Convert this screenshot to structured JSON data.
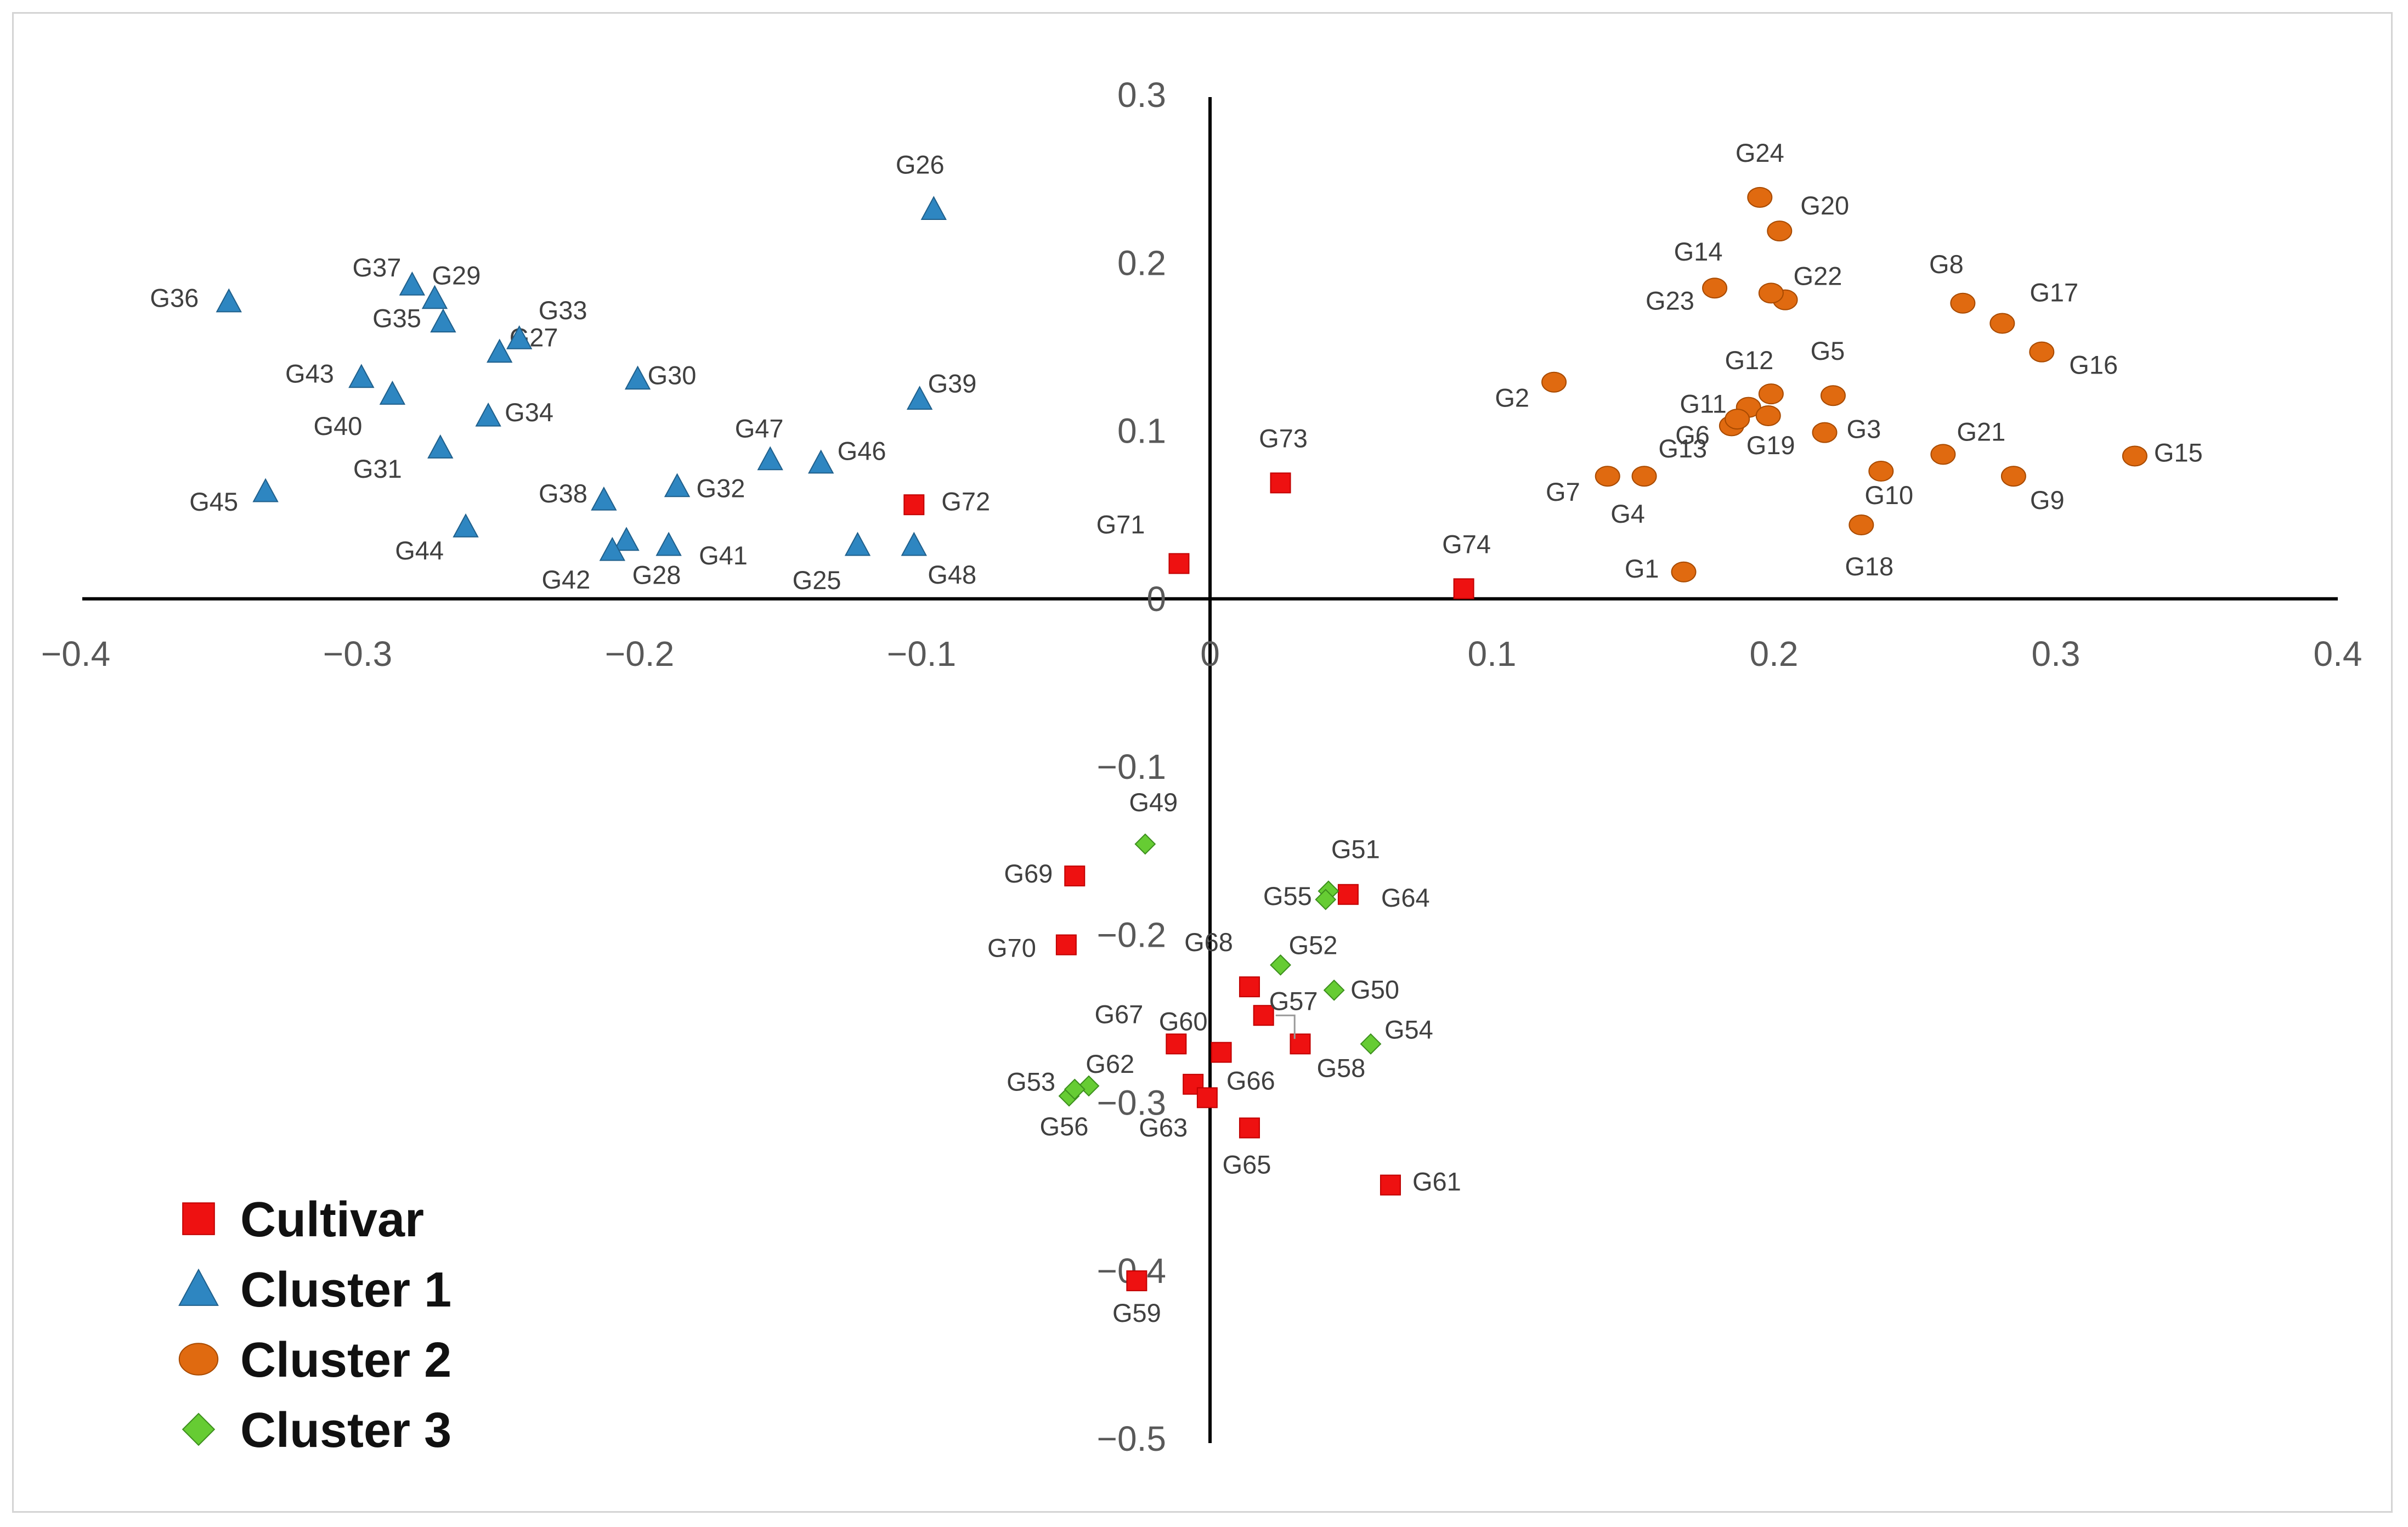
{
  "chart_data": {
    "type": "scatter",
    "title": "",
    "xlabel": "",
    "ylabel": "",
    "xlim": [
      -0.4,
      0.4
    ],
    "ylim": [
      -0.5,
      0.3
    ],
    "x_ticks": [
      "-0.4",
      "-0.3",
      "-0.2",
      "-0.1",
      "0",
      "0.1",
      "0.2",
      "0.3",
      "0.4"
    ],
    "y_ticks": [
      "0.3",
      "0.2",
      "0.1",
      "0",
      "-0.1",
      "-0.2",
      "-0.3",
      "-0.4",
      "-0.5"
    ],
    "grid": false,
    "legend_position": "bottom-left",
    "colors": {
      "Cultivar": "#ee1111",
      "Cluster 1": "#2e86c1",
      "Cluster 2": "#e06a10",
      "Cluster 3": "#66cc33"
    },
    "series": [
      {
        "name": "Cultivar",
        "marker": "square",
        "points": [
          {
            "label": "G59",
            "x": -0.026,
            "y": -0.406
          },
          {
            "label": "G61",
            "x": 0.064,
            "y": -0.349
          },
          {
            "label": "G63",
            "x": -0.006,
            "y": -0.289
          },
          {
            "label": "G64",
            "x": 0.049,
            "y": -0.176
          },
          {
            "label": "G65",
            "x": 0.014,
            "y": -0.315
          },
          {
            "label": "G66",
            "x": -0.001,
            "y": -0.297
          },
          {
            "label": "G67",
            "x": -0.012,
            "y": -0.265
          },
          {
            "label": "G68",
            "x": 0.014,
            "y": -0.231
          },
          {
            "label": "G69",
            "x": -0.048,
            "y": -0.165
          },
          {
            "label": "G70",
            "x": -0.051,
            "y": -0.206
          },
          {
            "label": "G71",
            "x": -0.011,
            "y": 0.021
          },
          {
            "label": "G72",
            "x": -0.105,
            "y": 0.056
          },
          {
            "label": "G73",
            "x": 0.025,
            "y": 0.069
          },
          {
            "label": "G74",
            "x": 0.09,
            "y": 0.006
          },
          {
            "label": "G57",
            "x": 0.019,
            "y": -0.248
          },
          {
            "label": "G58",
            "x": 0.032,
            "y": -0.265
          },
          {
            "label": "G60",
            "x": 0.004,
            "y": -0.27
          }
        ]
      },
      {
        "name": "Cluster 1",
        "marker": "triangle",
        "points": [
          {
            "label": "G25",
            "x": -0.125,
            "y": 0.032
          },
          {
            "label": "G26",
            "x": -0.098,
            "y": 0.232
          },
          {
            "label": "G27",
            "x": -0.252,
            "y": 0.147
          },
          {
            "label": "G28",
            "x": -0.207,
            "y": 0.035
          },
          {
            "label": "G29",
            "x": -0.275,
            "y": 0.179
          },
          {
            "label": "G30",
            "x": -0.203,
            "y": 0.131
          },
          {
            "label": "G31",
            "x": -0.273,
            "y": 0.09
          },
          {
            "label": "G32",
            "x": -0.189,
            "y": 0.067
          },
          {
            "label": "G33",
            "x": -0.245,
            "y": 0.155
          },
          {
            "label": "G34",
            "x": -0.256,
            "y": 0.109
          },
          {
            "label": "G35",
            "x": -0.272,
            "y": 0.165
          },
          {
            "label": "G36",
            "x": -0.348,
            "y": 0.177
          },
          {
            "label": "G37",
            "x": -0.283,
            "y": 0.187
          },
          {
            "label": "G38",
            "x": -0.215,
            "y": 0.059
          },
          {
            "label": "G39",
            "x": -0.103,
            "y": 0.119
          },
          {
            "label": "G40",
            "x": -0.29,
            "y": 0.122
          },
          {
            "label": "G41",
            "x": -0.192,
            "y": 0.032
          },
          {
            "label": "G42",
            "x": -0.212,
            "y": 0.029
          },
          {
            "label": "G43",
            "x": -0.301,
            "y": 0.132
          },
          {
            "label": "G44",
            "x": -0.264,
            "y": 0.043
          },
          {
            "label": "G45",
            "x": -0.335,
            "y": 0.064
          },
          {
            "label": "G46",
            "x": -0.138,
            "y": 0.081
          },
          {
            "label": "G47",
            "x": -0.156,
            "y": 0.083
          },
          {
            "label": "G48",
            "x": -0.105,
            "y": 0.032
          }
        ]
      },
      {
        "name": "Cluster 2",
        "marker": "circle",
        "points": [
          {
            "label": "G1",
            "x": 0.168,
            "y": 0.016
          },
          {
            "label": "G2",
            "x": 0.122,
            "y": 0.129
          },
          {
            "label": "G3",
            "x": 0.218,
            "y": 0.099
          },
          {
            "label": "G4",
            "x": 0.154,
            "y": 0.073
          },
          {
            "label": "G5",
            "x": 0.221,
            "y": 0.121
          },
          {
            "label": "G6",
            "x": 0.185,
            "y": 0.103
          },
          {
            "label": "G7",
            "x": 0.141,
            "y": 0.073
          },
          {
            "label": "G8",
            "x": 0.267,
            "y": 0.176
          },
          {
            "label": "G9",
            "x": 0.285,
            "y": 0.073
          },
          {
            "label": "G10",
            "x": 0.238,
            "y": 0.076
          },
          {
            "label": "G11",
            "x": 0.191,
            "y": 0.114
          },
          {
            "label": "G12",
            "x": 0.199,
            "y": 0.122
          },
          {
            "label": "G13",
            "x": 0.187,
            "y": 0.107
          },
          {
            "label": "G14",
            "x": 0.179,
            "y": 0.185
          },
          {
            "label": "G15",
            "x": 0.328,
            "y": 0.085
          },
          {
            "label": "G16",
            "x": 0.295,
            "y": 0.147
          },
          {
            "label": "G17",
            "x": 0.281,
            "y": 0.164
          },
          {
            "label": "G18",
            "x": 0.231,
            "y": 0.044
          },
          {
            "label": "G19",
            "x": 0.198,
            "y": 0.109
          },
          {
            "label": "G20",
            "x": 0.202,
            "y": 0.219
          },
          {
            "label": "G21",
            "x": 0.26,
            "y": 0.086
          },
          {
            "label": "G22",
            "x": 0.204,
            "y": 0.178
          },
          {
            "label": "G23",
            "x": 0.199,
            "y": 0.182
          },
          {
            "label": "G24",
            "x": 0.195,
            "y": 0.239
          }
        ]
      },
      {
        "name": "Cluster 3",
        "marker": "diamond",
        "points": [
          {
            "label": "G49",
            "x": -0.023,
            "y": -0.146
          },
          {
            "label": "G50",
            "x": 0.044,
            "y": -0.233
          },
          {
            "label": "G51",
            "x": 0.042,
            "y": -0.174
          },
          {
            "label": "G52",
            "x": 0.025,
            "y": -0.218
          },
          {
            "label": "G53",
            "x": -0.05,
            "y": -0.296
          },
          {
            "label": "G54",
            "x": 0.057,
            "y": -0.265
          },
          {
            "label": "G55",
            "x": 0.041,
            "y": -0.179
          },
          {
            "label": "G56",
            "x": -0.043,
            "y": -0.29
          },
          {
            "label": "G62",
            "x": -0.048,
            "y": -0.292
          }
        ]
      }
    ]
  }
}
